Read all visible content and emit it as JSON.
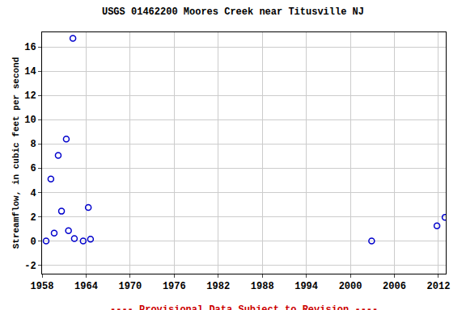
{
  "chart_data": {
    "type": "scatter",
    "title": "USGS 01462200 Moores Creek near Titusville NJ",
    "y_label": "Streamflow, in cubic feet per second",
    "annotations": [
      "---- Provisional Data Subject to Revision ----"
    ],
    "x": [
      1958.55,
      1959.2,
      1959.65,
      1960.2,
      1960.65,
      1961.3,
      1961.6,
      1962.2,
      1962.4,
      1963.6,
      1964.3,
      1964.6,
      2002.9,
      2011.8,
      2012.9
    ],
    "values": [
      0.0,
      5.1,
      0.65,
      7.05,
      2.45,
      8.4,
      0.85,
      16.7,
      0.2,
      0.0,
      2.75,
      0.15,
      0.0,
      1.25,
      1.95
    ],
    "color": "#0000cc",
    "marker": "circle-open",
    "xlim": [
      1958,
      2013
    ],
    "xticks": [
      1958,
      1964,
      1970,
      1976,
      1982,
      1988,
      1994,
      2000,
      2006,
      2012
    ],
    "ylim": [
      -2.7,
      17.2
    ],
    "yticks": [
      -2,
      0,
      2,
      4,
      6,
      8,
      10,
      12,
      14,
      16
    ],
    "grid": true
  }
}
